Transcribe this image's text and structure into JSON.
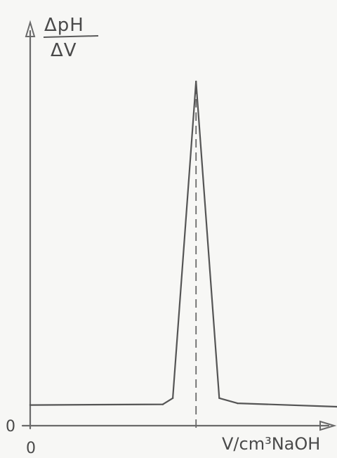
{
  "chart_data": {
    "type": "line",
    "title": "",
    "ylabel": {
      "numerator": "ΔpH",
      "denominator": "ΔV"
    },
    "xlabel": "V/cm³NaOH",
    "x_origin_label": "0",
    "y_origin_label": "0",
    "grid": false,
    "legend": "none",
    "series": [
      {
        "points": [
          {
            "x": 0.0,
            "y": 0.06
          },
          {
            "x": 0.8,
            "y": 0.062
          },
          {
            "x": 0.86,
            "y": 0.08
          },
          {
            "x": 1.0,
            "y": 1.0
          },
          {
            "x": 1.14,
            "y": 0.08
          },
          {
            "x": 1.25,
            "y": 0.065
          },
          {
            "x": 1.85,
            "y": 0.055
          }
        ]
      }
    ],
    "annotations": {
      "equivalence_line_x": 1.0
    },
    "xlim": [
      0,
      1.85
    ],
    "ylim": [
      0,
      1.0
    ]
  }
}
